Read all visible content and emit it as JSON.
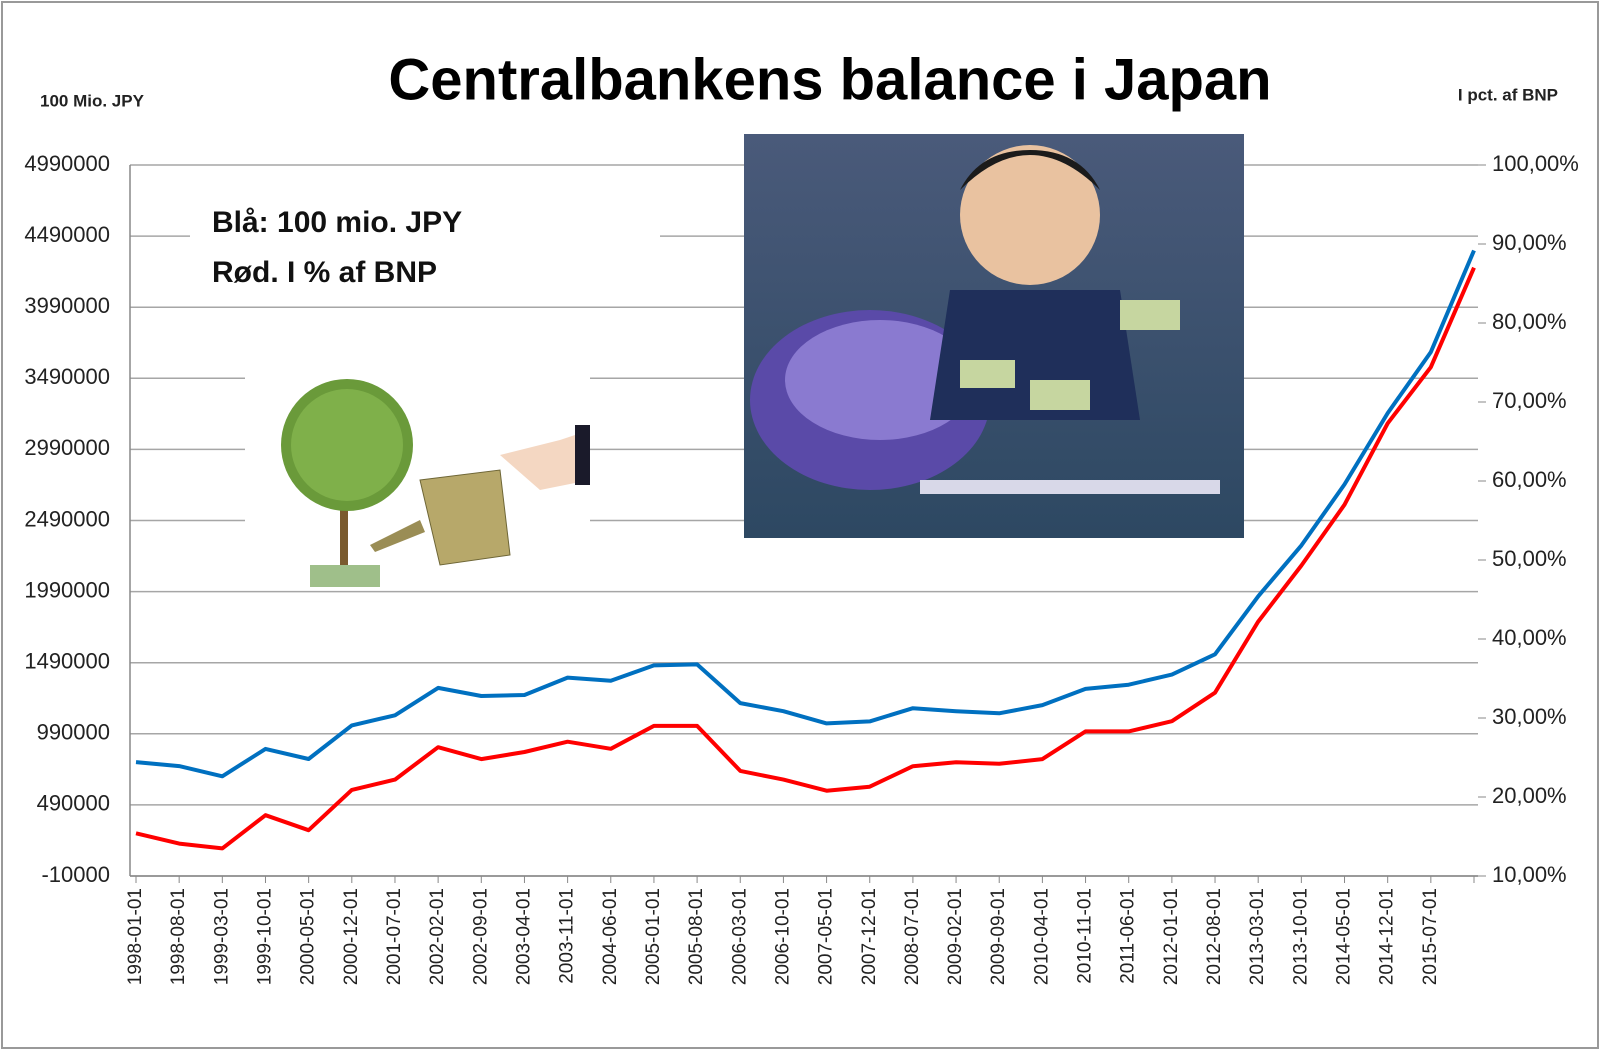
{
  "chart_data": {
    "type": "line",
    "title": "Centralbankens balance i Japan",
    "y_label": "100 Mio. JPY",
    "y2_label": "I pct. af BNP",
    "annotations": [
      "Blå: 100 mio. JPY",
      "Rød. I % af BNP"
    ],
    "categories": [
      "1998-01-01",
      "1998-08-01",
      "1999-03-01",
      "1999-10-01",
      "2000-05-01",
      "2000-12-01",
      "2001-07-01",
      "2002-02-01",
      "2002-09-01",
      "2003-04-01",
      "2003-11-01",
      "2004-06-01",
      "2005-01-01",
      "2005-08-01",
      "2006-03-01",
      "2006-10-01",
      "2007-05-01",
      "2007-12-01",
      "2008-07-01",
      "2009-02-01",
      "2009-09-01",
      "2010-04-01",
      "2010-11-01",
      "2011-06-01",
      "2012-01-01",
      "2012-08-01",
      "2013-03-01",
      "2013-10-01",
      "2014-05-01",
      "2014-12-01",
      "2015-07-01",
      null
    ],
    "series": [
      {
        "color": "#0070c0",
        "values": [
          791000,
          763000,
          691000,
          884000,
          813000,
          1049000,
          1120000,
          1313000,
          1256000,
          1263000,
          1385000,
          1363000,
          1471000,
          1478000,
          1206000,
          1149000,
          1063000,
          1077000,
          1170000,
          1149000,
          1134000,
          1192000,
          1306000,
          1335000,
          1406000,
          1549000,
          1957000,
          2315000,
          2744000,
          3245000,
          3674000,
          4389000
        ]
      },
      {
        "color": "#ff0000",
        "axis": "y2",
        "values": [
          15.4,
          14.1,
          13.5,
          17.7,
          15.8,
          20.9,
          22.2,
          26.3,
          24.8,
          25.7,
          27.0,
          26.1,
          29.0,
          29.0,
          23.3,
          22.2,
          20.8,
          21.3,
          23.9,
          24.4,
          24.2,
          24.8,
          28.3,
          28.3,
          29.6,
          33.2,
          42.2,
          49.3,
          57.0,
          67.3,
          74.4,
          87.0
        ]
      }
    ],
    "ylim": [
      -10000,
      4990000
    ],
    "yticks": [
      -10000,
      490000,
      990000,
      1490000,
      1990000,
      2490000,
      2990000,
      3490000,
      3990000,
      4490000,
      4990000
    ],
    "y2lim": [
      10,
      100
    ],
    "y2ticks": [
      {
        "value": 10,
        "label": "10,00%"
      },
      {
        "value": 20,
        "label": "20,00%"
      },
      {
        "value": 30,
        "label": "30,00%"
      },
      {
        "value": 40,
        "label": "40,00%"
      },
      {
        "value": 50,
        "label": "50,00%"
      },
      {
        "value": 60,
        "label": "60,00%"
      },
      {
        "value": 70,
        "label": "70,00%"
      },
      {
        "value": 80,
        "label": "80,00%"
      },
      {
        "value": 90,
        "label": "90,00%"
      },
      {
        "value": 100,
        "label": "100,00%"
      }
    ],
    "grid": true
  }
}
